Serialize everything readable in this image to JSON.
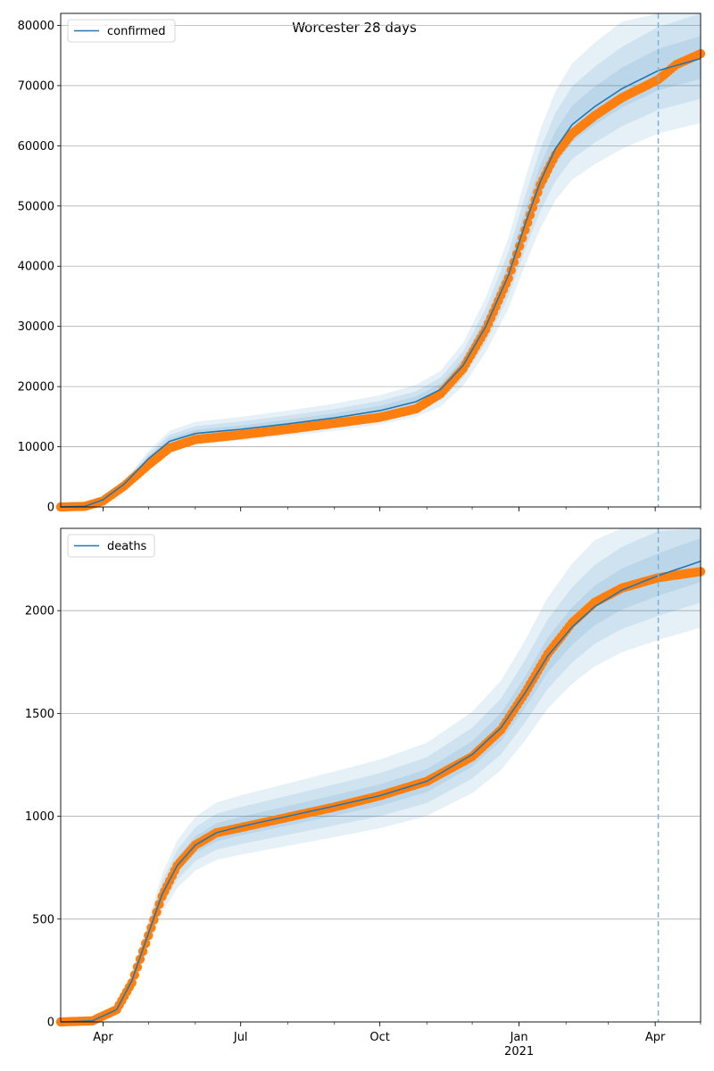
{
  "chart_data": {
    "title": "Worcester 28 days",
    "type": "line",
    "x_ticks_major": [
      {
        "date": "2020-04-01",
        "label": "Apr",
        "sublabel": ""
      },
      {
        "date": "2020-07-01",
        "label": "Jul",
        "sublabel": ""
      },
      {
        "date": "2020-10-01",
        "label": "Oct",
        "sublabel": ""
      },
      {
        "date": "2021-01-01",
        "label": "Jan",
        "sublabel": "2021"
      },
      {
        "date": "2021-04-01",
        "label": "Apr",
        "sublabel": ""
      }
    ],
    "x_range": [
      "2020-03-04",
      "2021-05-01"
    ],
    "forecast_start": "2021-04-03",
    "grid": "horizontal",
    "colors": {
      "model_line": "#1f77b4",
      "band": "#1f77b4",
      "observed": "#ff7f0e",
      "forecast_marker": "#7fb0d5",
      "grid": "#b0b0b0"
    },
    "panels": [
      {
        "legend": "confirmed",
        "legend_position": "top-left",
        "ylim": [
          0,
          82000
        ],
        "yticks": [
          0,
          10000,
          20000,
          30000,
          40000,
          50000,
          60000,
          70000,
          80000
        ],
        "band_width_fractions": [
          0.05,
          0.1,
          0.16
        ],
        "model": [
          [
            "2020-03-04",
            0
          ],
          [
            "2020-03-20",
            100
          ],
          [
            "2020-04-01",
            1200
          ],
          [
            "2020-04-15",
            3800
          ],
          [
            "2020-05-01",
            8000
          ],
          [
            "2020-05-15",
            10900
          ],
          [
            "2020-06-01",
            12200
          ],
          [
            "2020-07-01",
            12900
          ],
          [
            "2020-08-01",
            13800
          ],
          [
            "2020-09-01",
            14800
          ],
          [
            "2020-10-01",
            16000
          ],
          [
            "2020-10-25",
            17500
          ],
          [
            "2020-11-10",
            19500
          ],
          [
            "2020-11-25",
            23500
          ],
          [
            "2020-12-10",
            30000
          ],
          [
            "2020-12-25",
            38500
          ],
          [
            "2021-01-05",
            47000
          ],
          [
            "2021-01-15",
            54000
          ],
          [
            "2021-01-25",
            59500
          ],
          [
            "2021-02-05",
            63500
          ],
          [
            "2021-02-20",
            66500
          ],
          [
            "2021-03-10",
            69500
          ],
          [
            "2021-04-03",
            72500
          ],
          [
            "2021-05-01",
            74500
          ]
        ],
        "observed": [
          [
            "2020-03-04",
            0
          ],
          [
            "2020-03-20",
            100
          ],
          [
            "2020-04-01",
            1000
          ],
          [
            "2020-04-15",
            3500
          ],
          [
            "2020-05-01",
            7000
          ],
          [
            "2020-05-15",
            9800
          ],
          [
            "2020-06-01",
            11200
          ],
          [
            "2020-07-01",
            12000
          ],
          [
            "2020-08-01",
            12900
          ],
          [
            "2020-09-01",
            13900
          ],
          [
            "2020-10-01",
            14900
          ],
          [
            "2020-10-25",
            16300
          ],
          [
            "2020-11-10",
            18800
          ],
          [
            "2020-11-25",
            23000
          ],
          [
            "2020-12-10",
            29500
          ],
          [
            "2020-12-25",
            38000
          ],
          [
            "2021-01-05",
            46000
          ],
          [
            "2021-01-15",
            53500
          ],
          [
            "2021-01-25",
            58500
          ],
          [
            "2021-02-05",
            62000
          ],
          [
            "2021-02-20",
            65000
          ],
          [
            "2021-03-10",
            68000
          ],
          [
            "2021-04-03",
            71000
          ],
          [
            "2021-04-15",
            73500
          ],
          [
            "2021-05-01",
            75300
          ]
        ]
      },
      {
        "legend": "deaths",
        "legend_position": "top-left",
        "ylim": [
          0,
          2400
        ],
        "yticks": [
          0,
          500,
          1000,
          1500,
          2000
        ],
        "band_width_fractions": [
          0.05,
          0.1,
          0.16
        ],
        "model": [
          [
            "2020-03-04",
            0
          ],
          [
            "2020-03-25",
            5
          ],
          [
            "2020-04-10",
            60
          ],
          [
            "2020-04-20",
            200
          ],
          [
            "2020-05-01",
            430
          ],
          [
            "2020-05-10",
            620
          ],
          [
            "2020-05-20",
            760
          ],
          [
            "2020-06-01",
            860
          ],
          [
            "2020-06-15",
            920
          ],
          [
            "2020-07-01",
            950
          ],
          [
            "2020-08-01",
            1000
          ],
          [
            "2020-09-01",
            1050
          ],
          [
            "2020-10-01",
            1100
          ],
          [
            "2020-11-01",
            1170
          ],
          [
            "2020-12-01",
            1300
          ],
          [
            "2020-12-20",
            1430
          ],
          [
            "2021-01-05",
            1600
          ],
          [
            "2021-01-20",
            1780
          ],
          [
            "2021-02-05",
            1920
          ],
          [
            "2021-02-20",
            2020
          ],
          [
            "2021-03-10",
            2100
          ],
          [
            "2021-04-03",
            2170
          ],
          [
            "2021-05-01",
            2240
          ]
        ],
        "observed": [
          [
            "2020-03-04",
            0
          ],
          [
            "2020-03-25",
            5
          ],
          [
            "2020-04-10",
            60
          ],
          [
            "2020-04-20",
            190
          ],
          [
            "2020-05-01",
            420
          ],
          [
            "2020-05-10",
            610
          ],
          [
            "2020-05-20",
            760
          ],
          [
            "2020-06-01",
            860
          ],
          [
            "2020-06-15",
            920
          ],
          [
            "2020-07-01",
            945
          ],
          [
            "2020-08-01",
            995
          ],
          [
            "2020-09-01",
            1045
          ],
          [
            "2020-10-01",
            1100
          ],
          [
            "2020-11-01",
            1170
          ],
          [
            "2020-12-01",
            1290
          ],
          [
            "2020-12-20",
            1420
          ],
          [
            "2021-01-05",
            1600
          ],
          [
            "2021-01-20",
            1790
          ],
          [
            "2021-02-05",
            1940
          ],
          [
            "2021-02-20",
            2040
          ],
          [
            "2021-03-10",
            2110
          ],
          [
            "2021-04-03",
            2160
          ],
          [
            "2021-05-01",
            2190
          ]
        ]
      }
    ]
  }
}
